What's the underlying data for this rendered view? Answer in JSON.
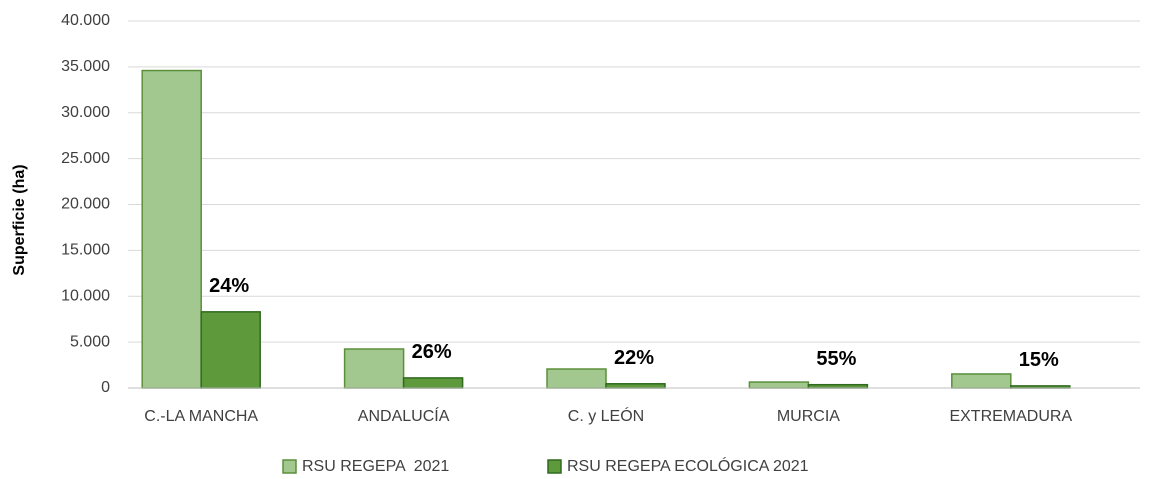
{
  "chart_data": {
    "type": "bar",
    "y_label": "Superficie (ha)",
    "categories": [
      "C.-LA MANCHA",
      "ANDALUCÍA",
      "C. y LEÓN",
      "MURCIA",
      "EXTREMADURA"
    ],
    "series": [
      {
        "name": "RSU REGEPA  2021",
        "color": "#a3c88f",
        "values": [
          34600,
          4250,
          2070,
          650,
          1530
        ]
      },
      {
        "name": "RSU REGEPA ECOLÓGICA 2021",
        "color": "#5e9a3c",
        "values": [
          8300,
          1100,
          460,
          360,
          230
        ]
      }
    ],
    "annotations": [
      "24%",
      "26%",
      "22%",
      "55%",
      "15%"
    ],
    "ylim": [
      0,
      40000
    ],
    "yticks": [
      0,
      {
        "value": 5000,
        "label": "5.000"
      },
      {
        "value": 10000,
        "label": "10.000"
      },
      {
        "value": 15000,
        "label": "15.000"
      },
      {
        "value": 20000,
        "label": "20.000"
      },
      {
        "value": 25000,
        "label": "25.000"
      },
      {
        "value": 30000,
        "label": "30.000"
      },
      {
        "value": 35000,
        "label": "35.000"
      },
      {
        "value": 40000,
        "label": "40.000"
      }
    ],
    "grid": true
  }
}
